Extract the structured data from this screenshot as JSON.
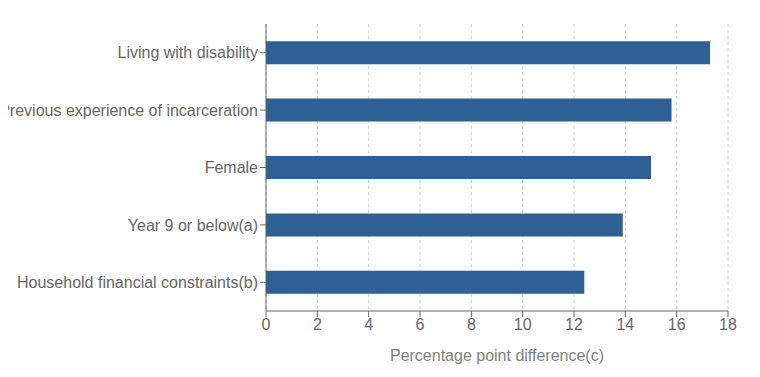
{
  "chart_data": {
    "type": "bar",
    "orientation": "horizontal",
    "categories": [
      "Household financial constraints(b)",
      "Year 9 or below(a)",
      "Female",
      "Previous experience of incarceration",
      "Living with disability"
    ],
    "values": [
      12.4,
      13.9,
      15.0,
      15.8,
      17.3
    ],
    "color": "#2E6095",
    "xlabel": "Percentage point difference(c)",
    "xlim": [
      0,
      18
    ],
    "xticks": [
      0,
      2,
      4,
      6,
      8,
      10,
      12,
      14,
      16,
      18
    ],
    "grid": true
  }
}
